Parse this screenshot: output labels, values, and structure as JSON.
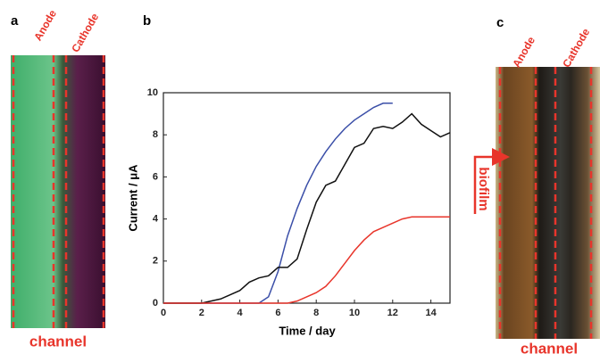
{
  "panel_a": {
    "label": "a",
    "anode": "Anode",
    "cathode": "Cathode",
    "caption": "channel"
  },
  "panel_c": {
    "label": "c",
    "anode": "Anode",
    "cathode": "Cathode",
    "arrow_label": "biofilm",
    "caption": "channel"
  },
  "chart_data": {
    "type": "line",
    "panel_label": "b",
    "x_label": "Time / day",
    "y_label": "Current / μA",
    "x": [
      0,
      0.5,
      1,
      1.5,
      2,
      2.5,
      3,
      3.5,
      4,
      4.5,
      5,
      5.5,
      6,
      6.5,
      7,
      7.5,
      8,
      8.5,
      9,
      9.5,
      10,
      10.5,
      11,
      11.5,
      12,
      12.5,
      13,
      13.5,
      14,
      14.5,
      15
    ],
    "series": [
      {
        "color": "#3b4fa8",
        "values": [
          0,
          0,
          0,
          0,
          0,
          0,
          0,
          0,
          0,
          0,
          0,
          0.3,
          1.5,
          3.2,
          4.5,
          5.6,
          6.5,
          7.2,
          7.8,
          8.3,
          8.7,
          9.0,
          9.3,
          9.5,
          9.5,
          null,
          null,
          null,
          null,
          null,
          null
        ]
      },
      {
        "color": "#111111",
        "values": [
          0,
          0,
          0,
          0,
          0,
          0.1,
          0.2,
          0.4,
          0.6,
          1.0,
          1.2,
          1.3,
          1.7,
          1.7,
          2.1,
          3.5,
          4.8,
          5.6,
          5.8,
          6.6,
          7.4,
          7.6,
          8.3,
          8.4,
          8.3,
          8.6,
          9.0,
          8.5,
          8.2,
          7.9,
          8.1
        ]
      },
      {
        "color": "#e8352b",
        "values": [
          0,
          0,
          0,
          0,
          0,
          0,
          0,
          0,
          0,
          0,
          0,
          0,
          0,
          0,
          0.1,
          0.3,
          0.5,
          0.8,
          1.3,
          1.9,
          2.5,
          3.0,
          3.4,
          3.6,
          3.8,
          4.0,
          4.1,
          4.1,
          4.1,
          4.1,
          4.1
        ]
      }
    ],
    "xlim": [
      0,
      15
    ],
    "ylim": [
      0,
      10
    ],
    "xticks": [
      0,
      2,
      4,
      6,
      8,
      10,
      12,
      14
    ],
    "yticks": [
      0,
      2,
      4,
      6,
      8,
      10
    ]
  }
}
